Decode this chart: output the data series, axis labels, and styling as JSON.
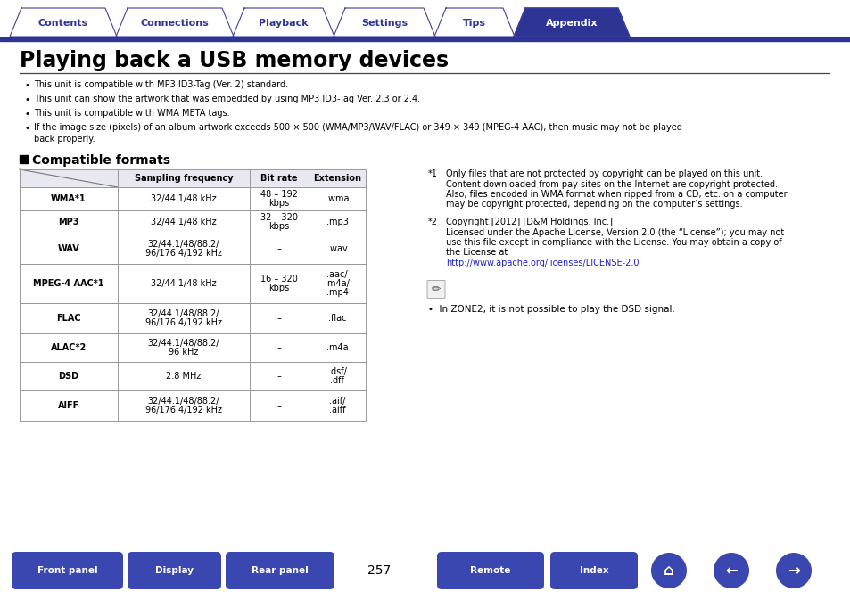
{
  "title": "Playing back a USB memory devices",
  "tab_labels": [
    "Contents",
    "Connections",
    "Playback",
    "Settings",
    "Tips",
    "Appendix"
  ],
  "tab_active": 5,
  "tab_color_active": "#2d3494",
  "tab_color_inactive_fill": "#ffffff",
  "tab_color_border": "#4040a0",
  "bullet_points": [
    "This unit is compatible with MP3 ID3-Tag (Ver. 2) standard.",
    "This unit can show the artwork that was embedded by using MP3 ID3-Tag Ver. 2.3 or 2.4.",
    "This unit is compatible with WMA META tags.",
    "If the image size (pixels) of an album artwork exceeds 500 × 500 (WMA/MP3/WAV/FLAC) or 349 × 349 (MPEG-4 AAC), then music may not be played\nback properly."
  ],
  "section_title": "Compatible formats",
  "table_headers": [
    "",
    "Sampling frequency",
    "Bit rate",
    "Extension"
  ],
  "table_rows": [
    [
      "WMA*1",
      "32/44.1/48 kHz",
      "48 – 192\nkbps",
      ".wma"
    ],
    [
      "MP3",
      "32/44.1/48 kHz",
      "32 – 320\nkbps",
      ".mp3"
    ],
    [
      "WAV",
      "32/44.1/48/88.2/\n96/176.4/192 kHz",
      "–",
      ".wav"
    ],
    [
      "MPEG-4 AAC*1",
      "32/44.1/48 kHz",
      "16 – 320\nkbps",
      ".aac/\n.m4a/\n.mp4"
    ],
    [
      "FLAC",
      "32/44.1/48/88.2/\n96/176.4/192 kHz",
      "–",
      ".flac"
    ],
    [
      "ALAC*2",
      "32/44.1/48/88.2/\n96 kHz",
      "–",
      ".m4a"
    ],
    [
      "DSD",
      "2.8 MHz",
      "–",
      ".dsf/\n.dff"
    ],
    [
      "AIFF",
      "32/44.1/48/88.2/\n96/176.4/192 kHz",
      "–",
      ".aif/\n.aiff"
    ]
  ],
  "fn1_label": "*1",
  "fn1_lines": [
    "Only files that are not protected by copyright can be played on this unit.",
    "Content downloaded from pay sites on the Internet are copyright protected.",
    "Also, files encoded in WMA format when ripped from a CD, etc. on a computer",
    "may be copyright protected, depending on the computer’s settings."
  ],
  "fn2_label": "*2",
  "fn2_lines": [
    "Copyright [2012] [D&M Holdings. Inc.]",
    "Licensed under the Apache License, Version 2.0 (the “License”); you may not",
    "use this file except in compliance with the License. You may obtain a copy of",
    "the License at",
    "http://www.apache.org/licenses/LICENSE-2.0"
  ],
  "fn2_url_line": 4,
  "note_text": "•  In ZONE2, it is not possible to play the DSD signal.",
  "bottom_buttons": [
    "Front panel",
    "Display",
    "Rear panel",
    "Remote",
    "Index"
  ],
  "page_number": "257",
  "button_color": "#3a47b0",
  "bg_color": "#ffffff",
  "text_color": "#000000",
  "table_border_color": "#999999",
  "header_bg": "#e8e8f0"
}
